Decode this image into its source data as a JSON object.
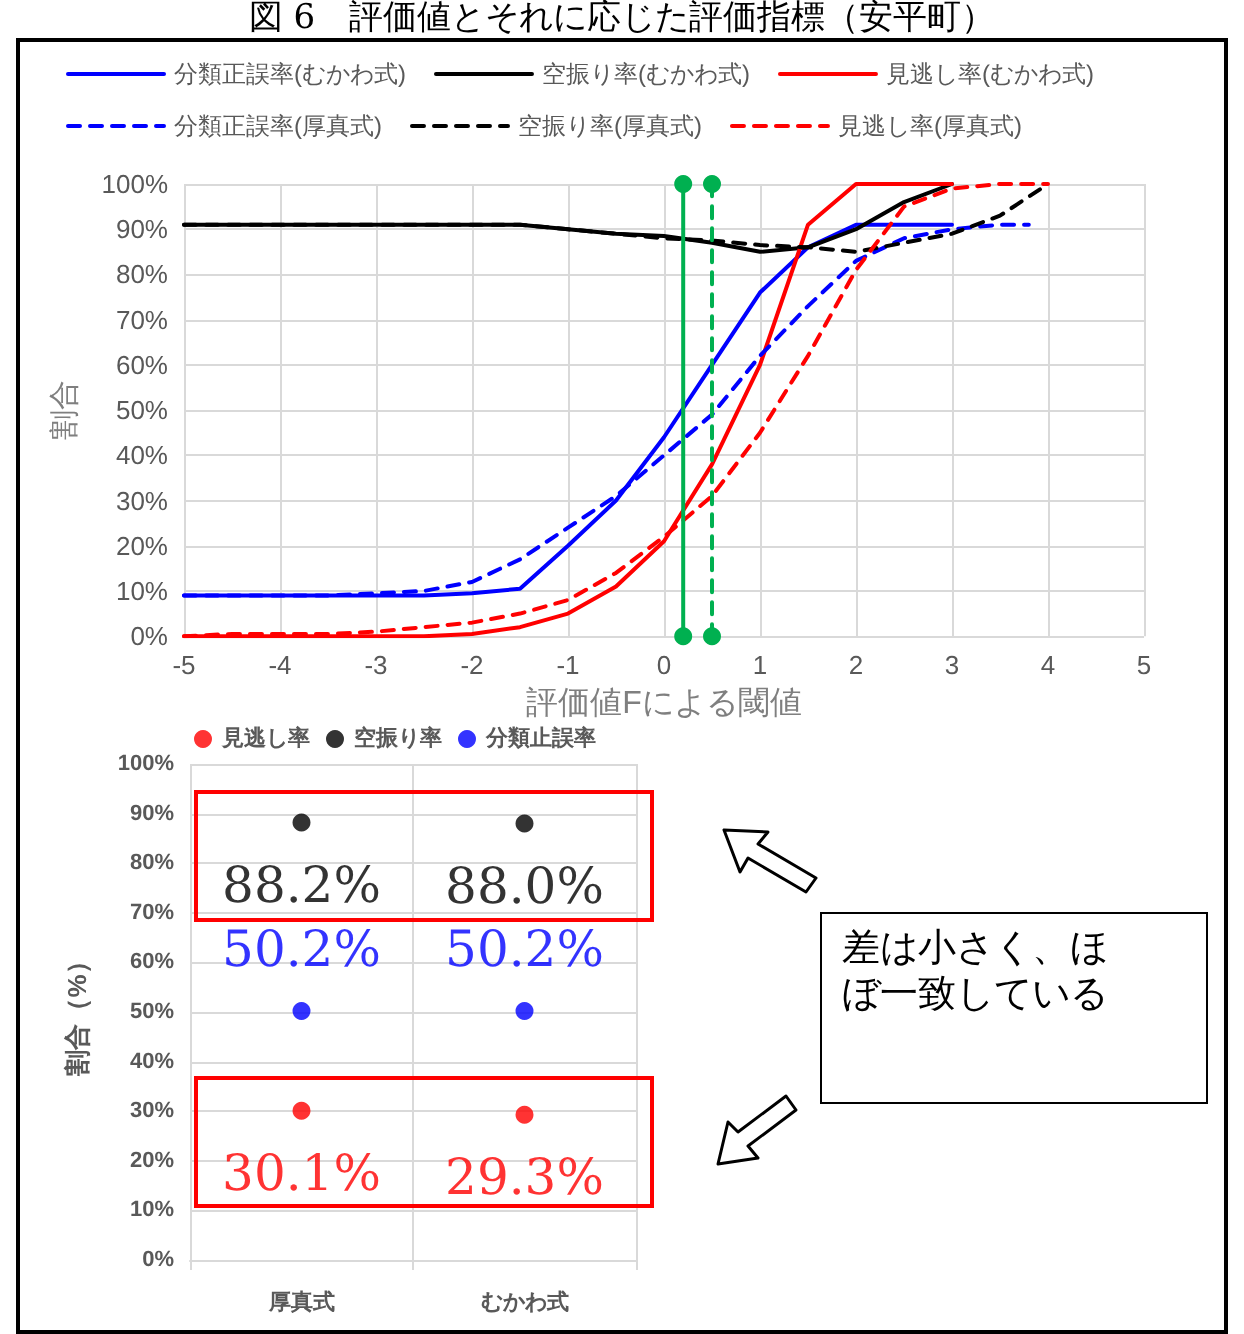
{
  "chart_data": [
    {
      "type": "line",
      "title": "図 6　評価値とそれに応じた評価指標（安平町）",
      "xlabel": "評価値Fによる閾値",
      "ylabel": "割合",
      "xlim": [
        -5,
        5
      ],
      "xticks": [
        -5,
        -4,
        -3,
        -2,
        -1,
        0,
        1,
        2,
        3,
        4,
        5
      ],
      "ylim": [
        0,
        100
      ],
      "yticks": [
        {
          "value": 0,
          "label": "0%"
        },
        {
          "value": 10,
          "label": "10%"
        },
        {
          "value": 20,
          "label": "20%"
        },
        {
          "value": 30,
          "label": "30%"
        },
        {
          "value": 40,
          "label": "40%"
        },
        {
          "value": 50,
          "label": "50%"
        },
        {
          "value": 60,
          "label": "60%"
        },
        {
          "value": 70,
          "label": "70%"
        },
        {
          "value": 80,
          "label": "80%"
        },
        {
          "value": 90,
          "label": "90%"
        },
        {
          "value": 100,
          "label": "100%"
        }
      ],
      "grid": true,
      "legend": "top",
      "marker": "none",
      "series": [
        {
          "name": "分類正誤率(むかわ式)",
          "color": "#0000ff",
          "line_style": "solid",
          "x": [
            -5,
            -4.5,
            -4,
            -3.5,
            -3,
            -2.5,
            -2,
            -1.5,
            -1,
            -0.5,
            0,
            0.5,
            1,
            1.5,
            2,
            2.5,
            3
          ],
          "values": [
            9,
            9,
            9,
            9,
            9,
            9,
            9.5,
            10.5,
            20,
            30,
            44,
            60,
            76,
            86,
            91,
            91,
            91
          ]
        },
        {
          "name": "空振り率(むかわ式)",
          "color": "#000000",
          "line_style": "solid",
          "x": [
            -5,
            -4.5,
            -4,
            -3.5,
            -3,
            -2.5,
            -2,
            -1.5,
            -1,
            -0.5,
            0,
            0.5,
            1,
            1.5,
            2,
            2.5,
            3
          ],
          "values": [
            91,
            91,
            91,
            91,
            91,
            91,
            91,
            91,
            90,
            89,
            88.5,
            87,
            85,
            86,
            90,
            96,
            100
          ]
        },
        {
          "name": "見逃し率(むかわ式)",
          "color": "#ff0000",
          "line_style": "solid",
          "x": [
            -5,
            -4.5,
            -4,
            -3.5,
            -3,
            -2.5,
            -2,
            -1.5,
            -1,
            -0.5,
            0,
            0.5,
            1,
            1.5,
            2,
            2.5,
            3
          ],
          "values": [
            0,
            0,
            0,
            0,
            0,
            0,
            0.5,
            2,
            5,
            11,
            21,
            38,
            60,
            91,
            100,
            100,
            100
          ]
        },
        {
          "name": "分類正誤率(厚真式)",
          "color": "#0000ff",
          "line_style": "dashed",
          "x": [
            -5,
            -4.5,
            -4,
            -3.5,
            -3,
            -2.5,
            -2,
            -1.5,
            -1,
            -0.5,
            0,
            0.5,
            1,
            1.5,
            2,
            2.5,
            3,
            3.5,
            3.8
          ],
          "values": [
            9,
            9,
            9,
            9,
            9.5,
            10,
            12,
            17,
            24,
            31,
            40,
            49,
            62,
            73,
            83,
            88,
            90,
            91,
            91
          ]
        },
        {
          "name": "空振り率(厚真式)",
          "color": "#000000",
          "line_style": "dashed",
          "x": [
            -5,
            -4.5,
            -4,
            -3.5,
            -3,
            -2.5,
            -2,
            -1.5,
            -1,
            -0.5,
            0,
            0.5,
            1,
            1.5,
            2,
            2.5,
            3,
            3.5,
            4
          ],
          "values": [
            91,
            91,
            91,
            91,
            91,
            91,
            91,
            91,
            90,
            89,
            88,
            87.5,
            86.5,
            86,
            85,
            87,
            89,
            93,
            100
          ]
        },
        {
          "name": "見逃し率(厚真式)",
          "color": "#ff0000",
          "line_style": "dashed",
          "x": [
            -5,
            -4.5,
            -4,
            -3.5,
            -3,
            -2.5,
            -2,
            -1.5,
            -1,
            -0.5,
            0,
            0.5,
            1,
            1.5,
            2,
            2.5,
            3,
            3.5,
            4
          ],
          "values": [
            0,
            0.5,
            0.5,
            0.5,
            1,
            2,
            3,
            5,
            8,
            14,
            22,
            31,
            45,
            62,
            81,
            95,
            99,
            100,
            100
          ]
        },
        {
          "color": "#00b050",
          "line_style": "solid",
          "marker": "circle",
          "x": [
            0.2,
            0.2
          ],
          "values": [
            0,
            100
          ]
        },
        {
          "color": "#00b050",
          "line_style": "dashed",
          "marker": "circle",
          "x": [
            0.5,
            0.5
          ],
          "values": [
            0,
            100
          ]
        }
      ]
    },
    {
      "type": "scatter",
      "ylabel": "割合（%）",
      "categories": [
        "厚真式",
        "むかわ式"
      ],
      "ylim": [
        0,
        100
      ],
      "yticks": [
        {
          "value": 0,
          "label": "0%"
        },
        {
          "value": 10,
          "label": "10%"
        },
        {
          "value": 20,
          "label": "20%"
        },
        {
          "value": 30,
          "label": "30%"
        },
        {
          "value": 40,
          "label": "40%"
        },
        {
          "value": 50,
          "label": "50%"
        },
        {
          "value": 60,
          "label": "60%"
        },
        {
          "value": 70,
          "label": "70%"
        },
        {
          "value": 80,
          "label": "80%"
        },
        {
          "value": 90,
          "label": "90%"
        },
        {
          "value": 100,
          "label": "100%"
        }
      ],
      "grid": true,
      "legend": "top",
      "marker": "circle",
      "series": [
        {
          "name": "見逃し率",
          "color": "#ff0000",
          "values": [
            30.1,
            29.3
          ],
          "value_labels": [
            "30.1%",
            "29.3%"
          ]
        },
        {
          "name": "空振り率",
          "color": "#000000",
          "values": [
            88.2,
            88.0
          ],
          "value_labels": [
            "88.2%",
            "88.0%"
          ]
        },
        {
          "name": "分類止誤率",
          "color": "#0000ff",
          "values": [
            50.2,
            50.2
          ],
          "value_labels": [
            "50.2%",
            "50.2%"
          ]
        }
      ],
      "annotations": [
        "差は小さく、ほぼ一致している"
      ]
    }
  ]
}
